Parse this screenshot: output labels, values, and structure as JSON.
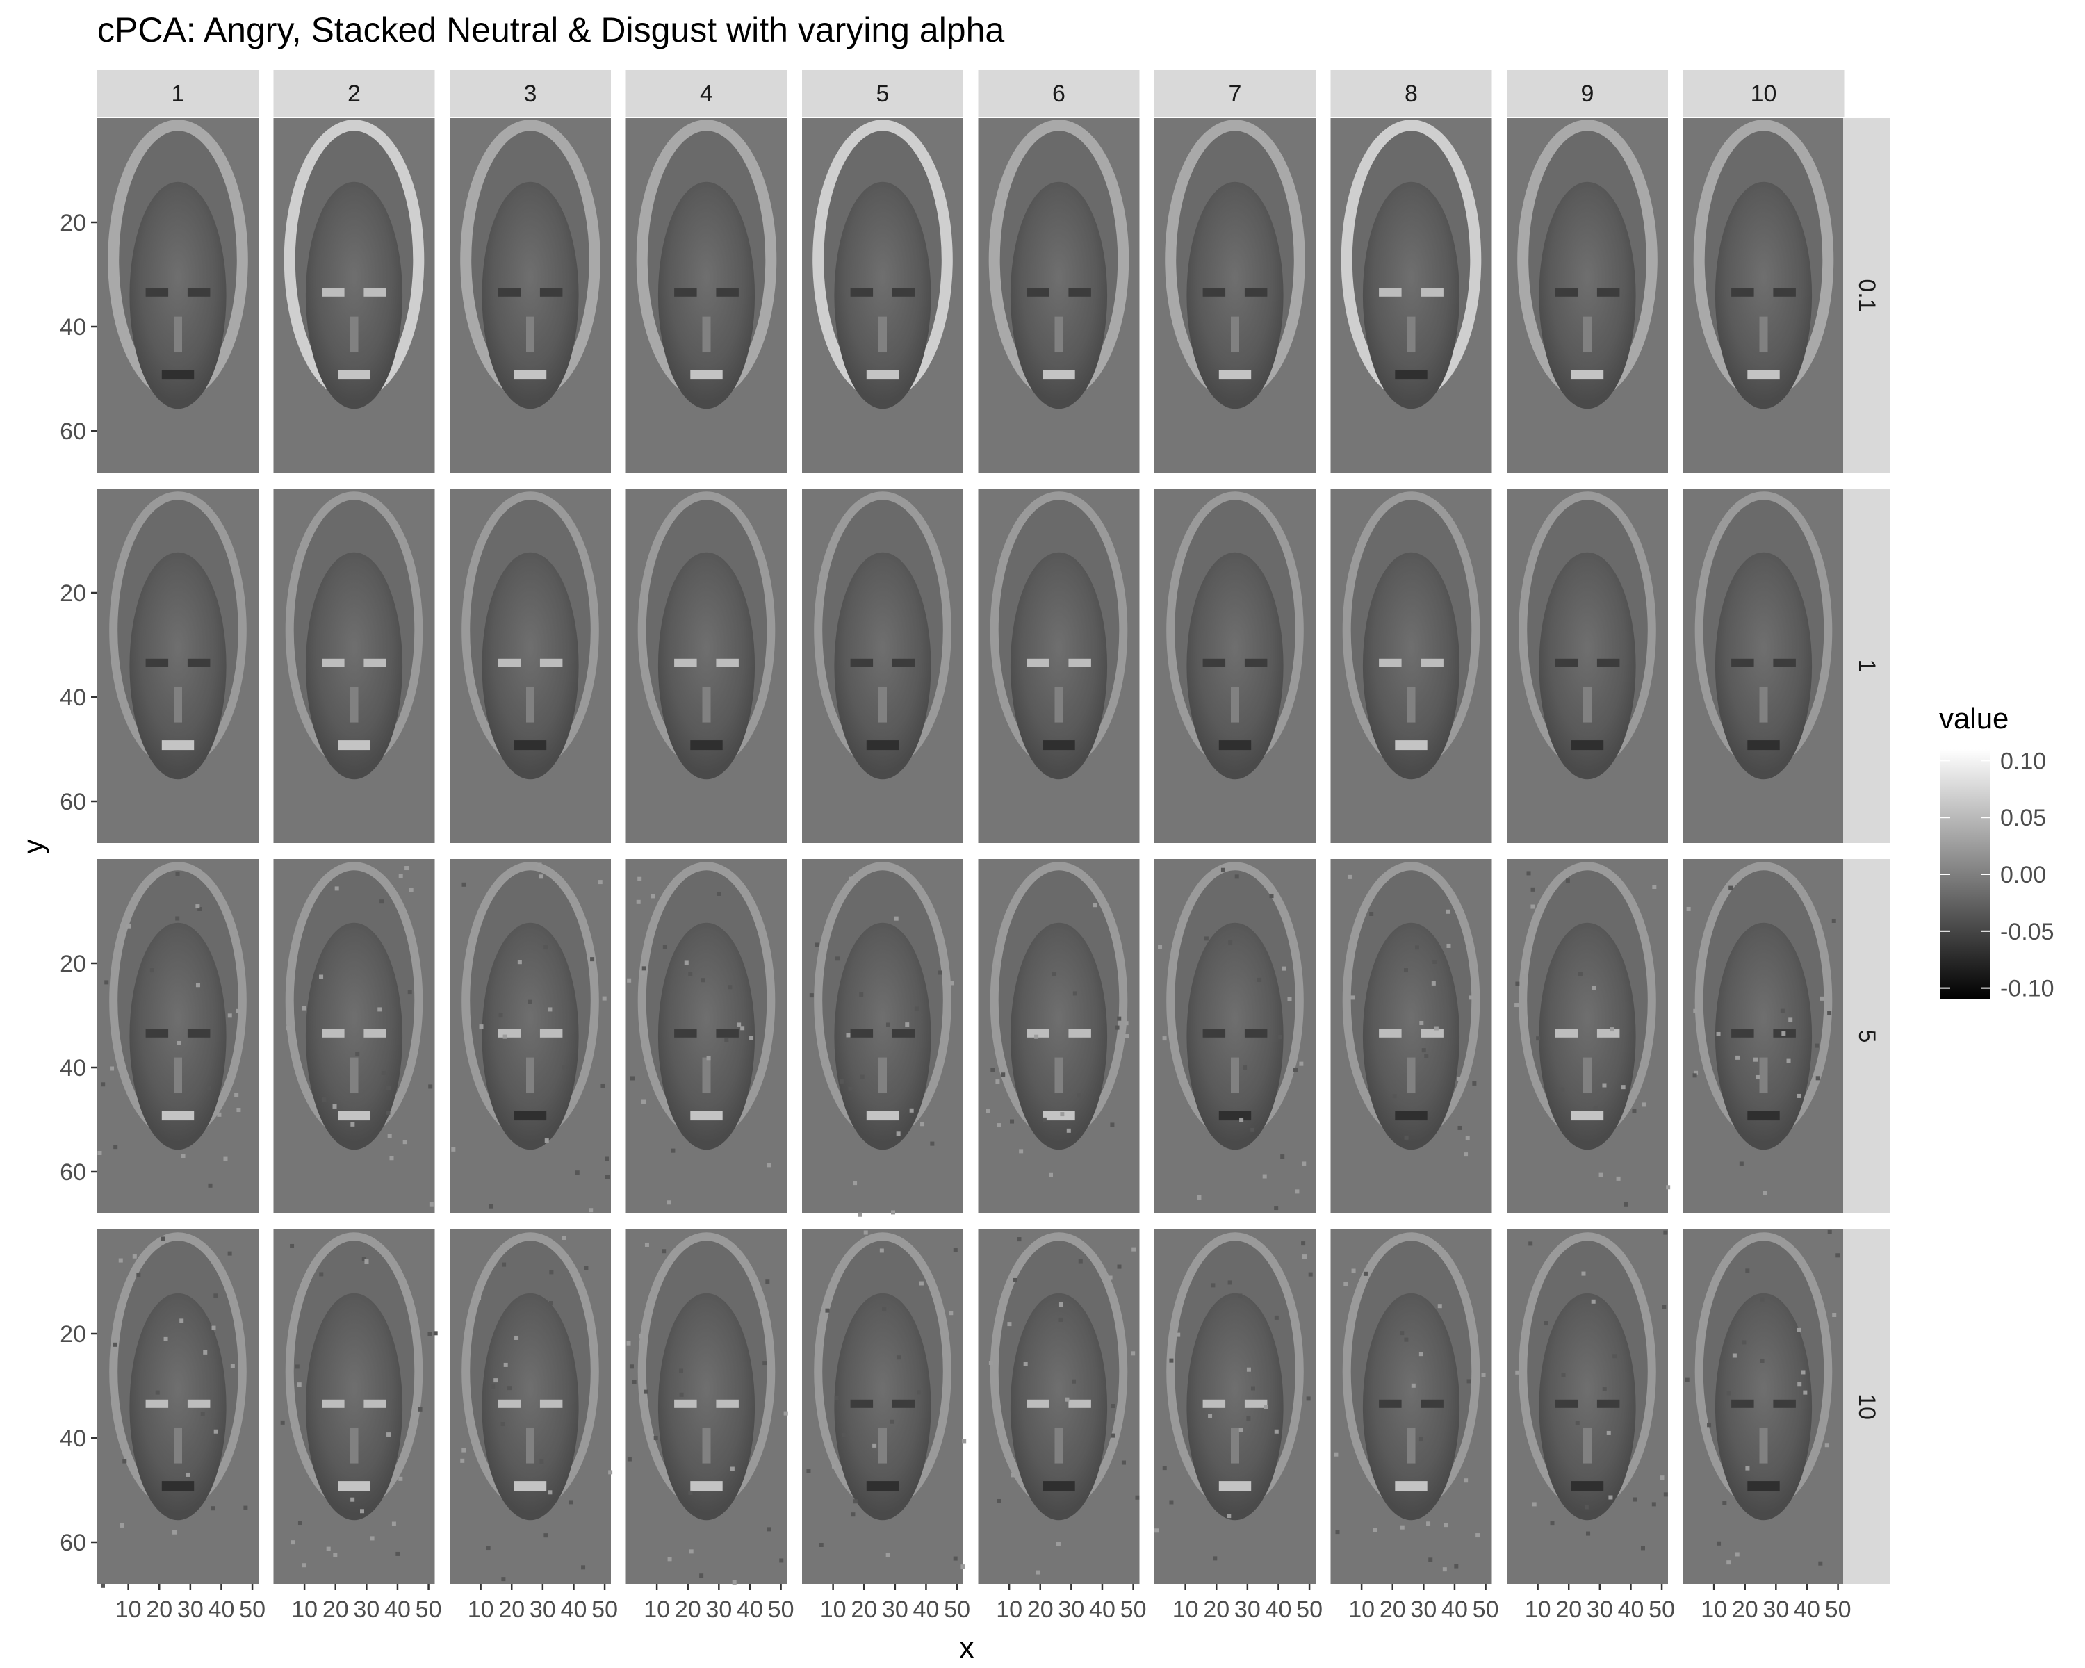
{
  "chart_data": {
    "type": "heatmap",
    "title": "cPCA: Angry, Stacked Neutral & Disgust with varying alpha",
    "xlabel": "x",
    "ylabel": "y",
    "column_facets": [
      "1",
      "2",
      "3",
      "4",
      "5",
      "6",
      "7",
      "8",
      "9",
      "10"
    ],
    "row_facets": [
      "0.1",
      "1",
      "5",
      "10"
    ],
    "x_ticks": [
      "10",
      "20",
      "30",
      "40",
      "50"
    ],
    "y_ticks": [
      "20",
      "40",
      "60"
    ],
    "xlim": [
      0,
      52
    ],
    "ylim": [
      0,
      68
    ],
    "y_reversed": true,
    "legend": {
      "title": "value",
      "position": "right",
      "labels": [
        "0.10",
        "0.05",
        "0.00",
        "-0.05",
        "-0.10"
      ],
      "values": [
        0.1,
        0.05,
        0.0,
        -0.05,
        -0.1
      ],
      "range": [
        -0.11,
        0.11
      ],
      "low_color": "#000000",
      "high_color": "#ffffff"
    },
    "strip_color": "#d9d9d9",
    "grid": false
  }
}
